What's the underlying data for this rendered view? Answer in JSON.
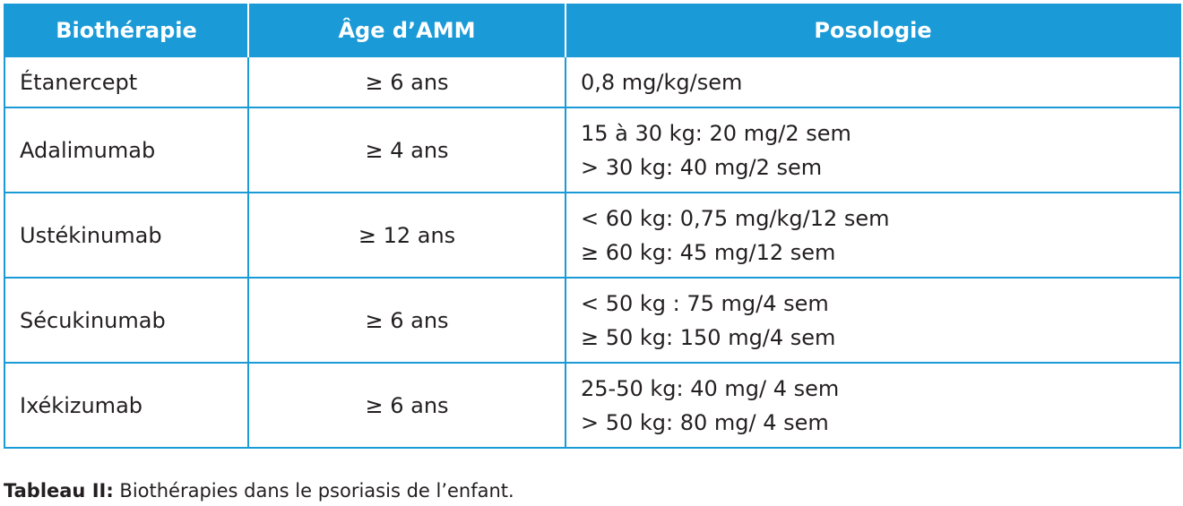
{
  "table": {
    "header": [
      "Biothérapie",
      "Âge d’AMM",
      "Posologie"
    ],
    "rows": [
      [
        "Étanercept",
        "≥ 6 ans",
        [
          "0,8 mg/kg/sem"
        ]
      ],
      [
        "Adalimumab",
        "≥ 4 ans",
        [
          "15 à 30 kg: 20 mg/2 sem",
          "> 30 kg: 40 mg/2 sem"
        ]
      ],
      [
        "Ustékinumab",
        "≥ 12 ans",
        [
          "< 60 kg: 0,75 mg/kg/12 sem",
          "≥ 60 kg: 45 mg/12 sem"
        ]
      ],
      [
        "Sécukinumab",
        "≥ 6 ans",
        [
          "< 50 kg : 75 mg/4 sem",
          "≥ 50 kg: 150 mg/4 sem"
        ]
      ],
      [
        "Ixékizumab",
        "≥ 6 ans",
        [
          "25-50 kg: 40 mg/ 4 sem",
          "> 50 kg: 80 mg/ 4 sem"
        ]
      ]
    ]
  },
  "caption": {
    "label": "Tableau II:",
    "text": "Biothérapies dans le psoriasis de l’enfant."
  }
}
